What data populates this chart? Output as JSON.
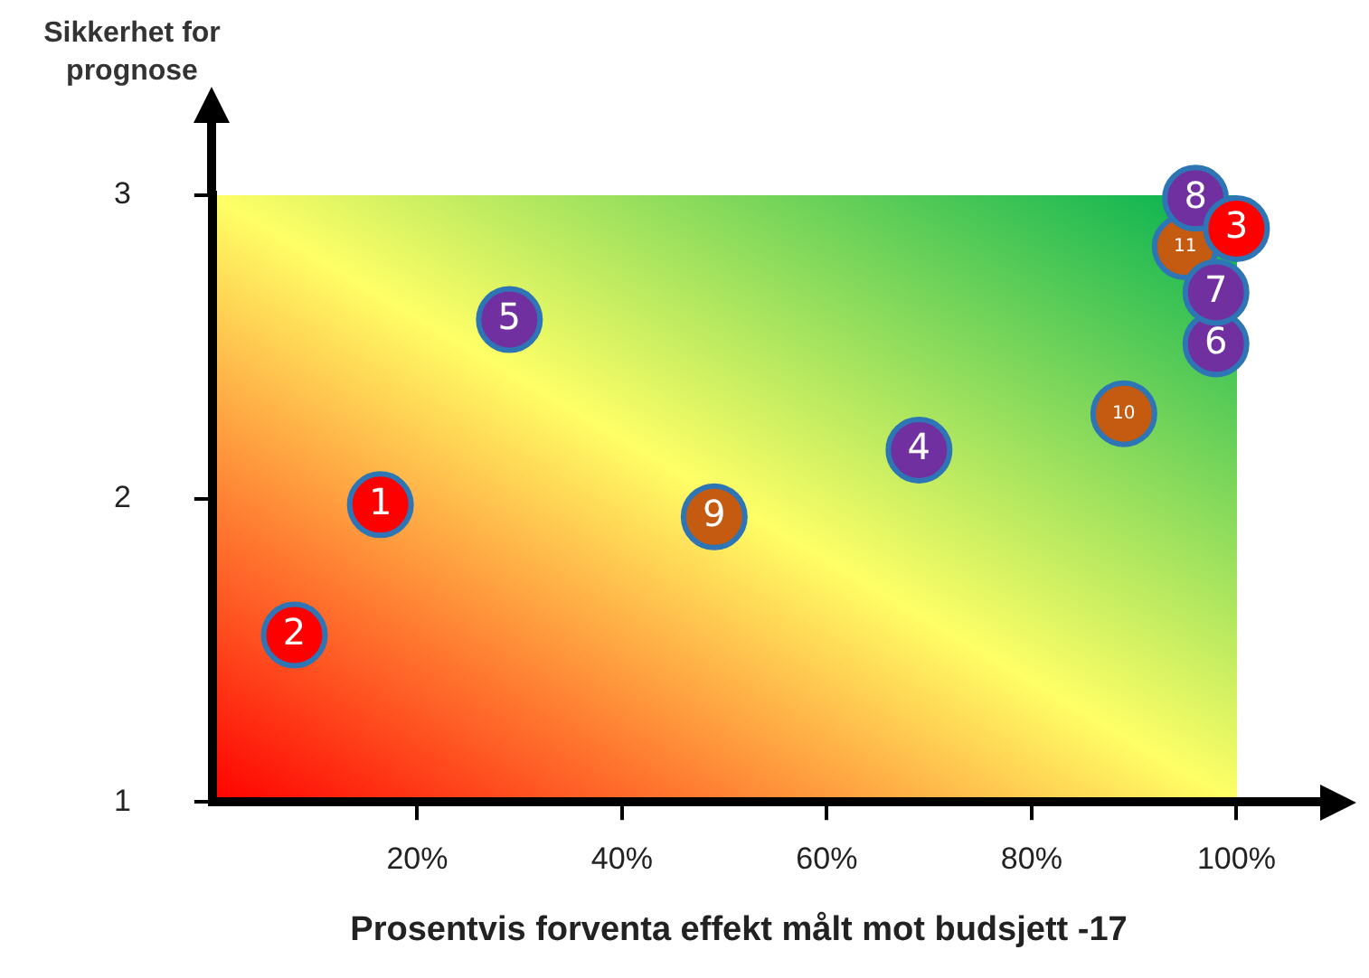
{
  "chart_data": {
    "type": "scatter",
    "xlabel": "Prosentvis forventa effekt målt mot budsjett -17",
    "ylabel": "Sikkerhet for prognose",
    "xlim": [
      0,
      108
    ],
    "ylim": [
      1,
      3
    ],
    "xticks": [
      {
        "value": 20,
        "label": "20%"
      },
      {
        "value": 40,
        "label": "40%"
      },
      {
        "value": 60,
        "label": "60%"
      },
      {
        "value": 80,
        "label": "80%"
      },
      {
        "value": 100,
        "label": "100%"
      }
    ],
    "yticks": [
      1,
      2,
      3
    ],
    "grid": false,
    "marker": "circle",
    "series": [
      {
        "color": "#ff0000",
        "x": [
          16.4,
          8,
          100
        ],
        "values": [
          1.98,
          1.55,
          2.89
        ]
      },
      {
        "color": "#7030a0",
        "x": [
          69,
          29,
          98,
          98,
          96
        ],
        "values": [
          2.16,
          2.59,
          2.51,
          2.68,
          2.99
        ]
      },
      {
        "color": "#c55a11",
        "x": [
          49,
          89,
          95
        ],
        "values": [
          1.94,
          2.28,
          2.83
        ]
      }
    ],
    "annotations": [
      {
        "text": "1",
        "x": 16.4,
        "y": 1.98
      },
      {
        "text": "2",
        "x": 8,
        "y": 1.55
      },
      {
        "text": "3",
        "x": 100,
        "y": 2.89
      },
      {
        "text": "4",
        "x": 69,
        "y": 2.16
      },
      {
        "text": "5",
        "x": 29,
        "y": 2.59
      },
      {
        "text": "6",
        "x": 98,
        "y": 2.51
      },
      {
        "text": "7",
        "x": 98,
        "y": 2.68
      },
      {
        "text": "8",
        "x": 96,
        "y": 2.99
      },
      {
        "text": "9",
        "x": 49,
        "y": 1.94
      },
      {
        "text": "10",
        "x": 89,
        "y": 2.28
      },
      {
        "text": "11",
        "x": 95,
        "y": 2.83
      }
    ]
  }
}
